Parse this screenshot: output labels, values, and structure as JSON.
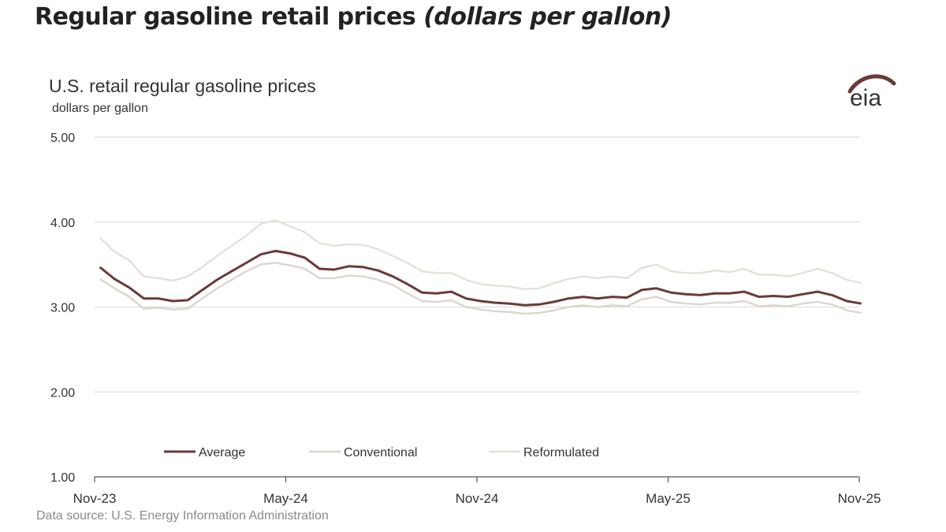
{
  "header": {
    "title_main": "Regular gasoline retail prices",
    "title_sub": "(dollars per gallon)"
  },
  "source": "Data source: U.S. Energy Information Administration",
  "logo": {
    "text": "eia",
    "icon": "eia-logo"
  },
  "chart_data": {
    "type": "line",
    "title": "U.S. retail regular gasoline prices",
    "unit_label": "dollars per gallon",
    "ylim": [
      1.0,
      5.0
    ],
    "yticks": [
      "1.00",
      "2.00",
      "3.00",
      "4.00",
      "5.00"
    ],
    "xticks": [
      "Nov-23",
      "May-24",
      "Nov-24",
      "May-25",
      "Nov-25"
    ],
    "x_range": [
      "2023-11-01",
      "2025-11-01"
    ],
    "grid": true,
    "legend": "bottom-inside",
    "colors": {
      "Average": "#6b3a37",
      "Conventional": "#dcd6cd",
      "Reformulated": "#e6e0d8"
    },
    "x": [
      "2023-11-06",
      "2023-11-20",
      "2023-12-04",
      "2023-12-18",
      "2024-01-01",
      "2024-01-15",
      "2024-01-29",
      "2024-02-12",
      "2024-02-26",
      "2024-03-11",
      "2024-03-25",
      "2024-04-08",
      "2024-04-22",
      "2024-05-06",
      "2024-05-20",
      "2024-06-03",
      "2024-06-17",
      "2024-07-01",
      "2024-07-15",
      "2024-07-29",
      "2024-08-12",
      "2024-08-26",
      "2024-09-09",
      "2024-09-23",
      "2024-10-07",
      "2024-10-21",
      "2024-11-04",
      "2024-11-18",
      "2024-12-02",
      "2024-12-16",
      "2024-12-30",
      "2025-01-13",
      "2025-01-27",
      "2025-02-10",
      "2025-02-24",
      "2025-03-10",
      "2025-03-24",
      "2025-04-07",
      "2025-04-21",
      "2025-05-05",
      "2025-05-19",
      "2025-06-02",
      "2025-06-16",
      "2025-06-30",
      "2025-07-14",
      "2025-07-28",
      "2025-08-11",
      "2025-08-25",
      "2025-09-08",
      "2025-09-22",
      "2025-10-06",
      "2025-10-20",
      "2025-11-03"
    ],
    "series": [
      {
        "name": "Average",
        "values": [
          3.47,
          3.33,
          3.23,
          3.1,
          3.1,
          3.07,
          3.08,
          3.2,
          3.32,
          3.42,
          3.52,
          3.62,
          3.66,
          3.63,
          3.58,
          3.45,
          3.44,
          3.48,
          3.47,
          3.43,
          3.36,
          3.27,
          3.17,
          3.16,
          3.18,
          3.1,
          3.07,
          3.05,
          3.04,
          3.02,
          3.03,
          3.06,
          3.1,
          3.12,
          3.1,
          3.12,
          3.11,
          3.2,
          3.22,
          3.17,
          3.15,
          3.14,
          3.16,
          3.16,
          3.18,
          3.12,
          3.13,
          3.12,
          3.15,
          3.18,
          3.14,
          3.07,
          3.04
        ]
      },
      {
        "name": "Conventional",
        "values": [
          3.33,
          3.22,
          3.12,
          2.98,
          2.99,
          2.97,
          2.98,
          3.1,
          3.22,
          3.32,
          3.42,
          3.5,
          3.52,
          3.49,
          3.45,
          3.34,
          3.34,
          3.37,
          3.36,
          3.32,
          3.26,
          3.16,
          3.07,
          3.06,
          3.08,
          3.0,
          2.97,
          2.95,
          2.94,
          2.92,
          2.93,
          2.96,
          3.0,
          3.02,
          3.0,
          3.02,
          3.01,
          3.09,
          3.12,
          3.06,
          3.04,
          3.03,
          3.05,
          3.05,
          3.07,
          3.01,
          3.02,
          3.01,
          3.04,
          3.06,
          3.03,
          2.96,
          2.93
        ]
      },
      {
        "name": "Reformulated",
        "values": [
          3.82,
          3.65,
          3.55,
          3.36,
          3.34,
          3.31,
          3.36,
          3.47,
          3.6,
          3.72,
          3.84,
          3.98,
          4.02,
          3.95,
          3.88,
          3.75,
          3.72,
          3.74,
          3.73,
          3.68,
          3.6,
          3.52,
          3.42,
          3.4,
          3.4,
          3.32,
          3.27,
          3.25,
          3.24,
          3.21,
          3.22,
          3.28,
          3.33,
          3.36,
          3.34,
          3.36,
          3.34,
          3.46,
          3.5,
          3.42,
          3.4,
          3.4,
          3.43,
          3.41,
          3.45,
          3.38,
          3.38,
          3.36,
          3.4,
          3.45,
          3.4,
          3.32,
          3.28
        ]
      }
    ]
  }
}
